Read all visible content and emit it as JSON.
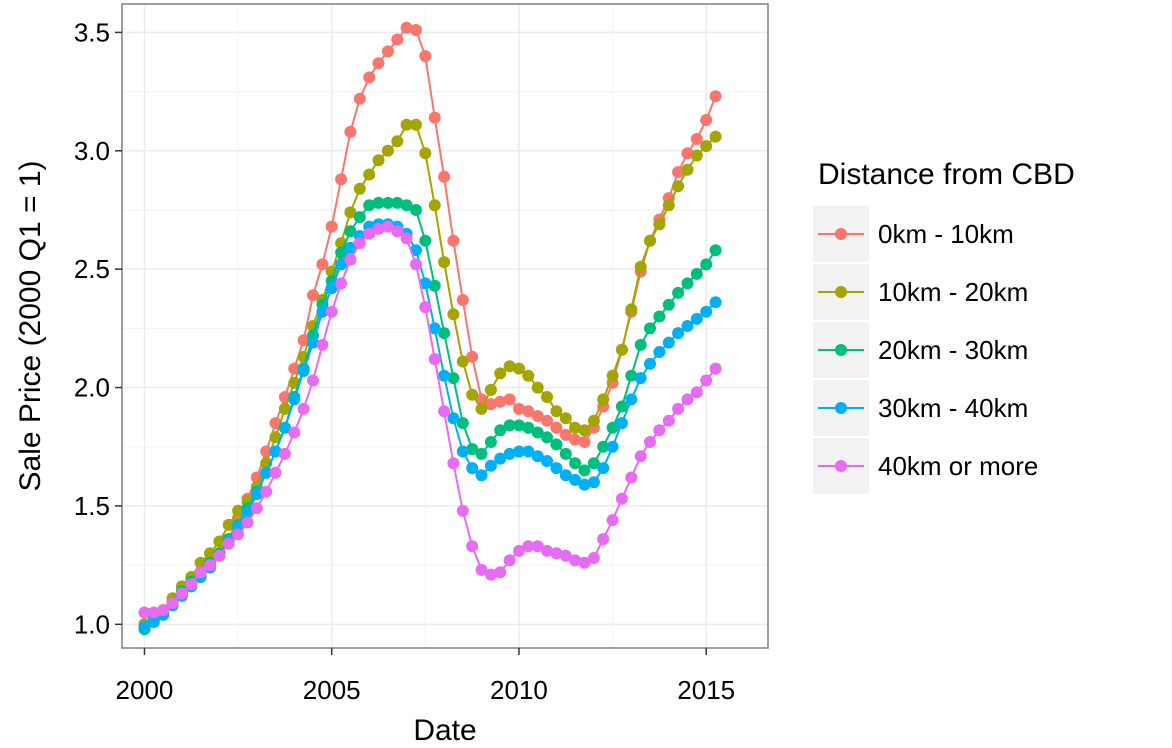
{
  "chart_data": {
    "type": "line",
    "title": "",
    "xlabel": "Date",
    "ylabel": "Sale Price (2000 Q1 = 1)",
    "xlim": [
      1999.4,
      2016.65
    ],
    "ylim": [
      0.9,
      3.62
    ],
    "x_ticks": [
      2000,
      2005,
      2010,
      2015
    ],
    "x_tick_labels": [
      "2000",
      "2005",
      "2010",
      "2015"
    ],
    "y_ticks": [
      1.0,
      1.5,
      2.0,
      2.5,
      3.0,
      3.5
    ],
    "y_tick_labels": [
      "1.0",
      "1.5",
      "2.0",
      "2.5",
      "3.0",
      "3.5"
    ],
    "grid": true,
    "theme": "ggplot-bw",
    "legend": {
      "title": "Distance from CBD",
      "position": "right"
    },
    "x": [
      2000.0,
      2000.25,
      2000.5,
      2000.75,
      2001.0,
      2001.25,
      2001.5,
      2001.75,
      2002.0,
      2002.25,
      2002.5,
      2002.75,
      2003.0,
      2003.25,
      2003.5,
      2003.75,
      2004.0,
      2004.25,
      2004.5,
      2004.75,
      2005.0,
      2005.25,
      2005.5,
      2005.75,
      2006.0,
      2006.25,
      2006.5,
      2006.75,
      2007.0,
      2007.25,
      2007.5,
      2007.75,
      2008.0,
      2008.25,
      2008.5,
      2008.75,
      2009.0,
      2009.25,
      2009.5,
      2009.75,
      2010.0,
      2010.25,
      2010.5,
      2010.75,
      2011.0,
      2011.25,
      2011.5,
      2011.75,
      2012.0,
      2012.25,
      2012.5,
      2012.75,
      2013.0,
      2013.25,
      2013.5,
      2013.75,
      2014.0,
      2014.25,
      2014.5,
      2014.75,
      2015.0,
      2015.25
    ],
    "series": [
      {
        "name": "0km - 10km",
        "color": "#F8766D",
        "values": [
          1.0,
          1.02,
          1.05,
          1.1,
          1.14,
          1.17,
          1.2,
          1.24,
          1.3,
          1.36,
          1.45,
          1.53,
          1.62,
          1.73,
          1.85,
          1.96,
          2.08,
          2.2,
          2.39,
          2.52,
          2.68,
          2.88,
          3.08,
          3.22,
          3.31,
          3.37,
          3.42,
          3.47,
          3.52,
          3.51,
          3.4,
          3.14,
          2.89,
          2.62,
          2.37,
          2.13,
          1.95,
          1.93,
          1.94,
          1.95,
          1.91,
          1.9,
          1.88,
          1.86,
          1.83,
          1.8,
          1.78,
          1.77,
          1.83,
          1.92,
          2.02,
          2.16,
          2.32,
          2.49,
          2.62,
          2.71,
          2.8,
          2.91,
          2.99,
          3.05,
          3.13,
          3.23
        ]
      },
      {
        "name": "10km - 20km",
        "color": "#A3A500",
        "values": [
          1.0,
          1.03,
          1.06,
          1.11,
          1.16,
          1.2,
          1.26,
          1.3,
          1.35,
          1.42,
          1.48,
          1.52,
          1.58,
          1.68,
          1.79,
          1.91,
          2.02,
          2.13,
          2.26,
          2.37,
          2.49,
          2.61,
          2.74,
          2.84,
          2.9,
          2.96,
          3.0,
          3.04,
          3.11,
          3.11,
          2.99,
          2.77,
          2.53,
          2.31,
          2.11,
          1.97,
          1.91,
          1.99,
          2.06,
          2.09,
          2.08,
          2.05,
          2.0,
          1.96,
          1.9,
          1.87,
          1.83,
          1.82,
          1.86,
          1.95,
          2.05,
          2.16,
          2.33,
          2.51,
          2.62,
          2.69,
          2.77,
          2.85,
          2.92,
          2.98,
          3.02,
          3.06
        ]
      },
      {
        "name": "20km - 30km",
        "color": "#00BF7D",
        "values": [
          0.98,
          1.02,
          1.05,
          1.09,
          1.14,
          1.18,
          1.22,
          1.26,
          1.3,
          1.36,
          1.42,
          1.49,
          1.56,
          1.64,
          1.73,
          1.83,
          1.96,
          2.08,
          2.22,
          2.35,
          2.45,
          2.57,
          2.66,
          2.72,
          2.77,
          2.78,
          2.78,
          2.78,
          2.77,
          2.75,
          2.62,
          2.43,
          2.23,
          2.04,
          1.85,
          1.74,
          1.72,
          1.77,
          1.82,
          1.84,
          1.84,
          1.83,
          1.81,
          1.79,
          1.76,
          1.72,
          1.68,
          1.65,
          1.68,
          1.75,
          1.83,
          1.92,
          2.05,
          2.18,
          2.25,
          2.3,
          2.35,
          2.4,
          2.44,
          2.48,
          2.52,
          2.58
        ]
      },
      {
        "name": "30km - 40km",
        "color": "#00B0F6",
        "values": [
          0.99,
          1.01,
          1.04,
          1.08,
          1.12,
          1.16,
          1.2,
          1.24,
          1.29,
          1.35,
          1.41,
          1.47,
          1.55,
          1.64,
          1.73,
          1.83,
          1.95,
          2.07,
          2.19,
          2.32,
          2.42,
          2.52,
          2.59,
          2.64,
          2.68,
          2.69,
          2.69,
          2.68,
          2.65,
          2.58,
          2.44,
          2.25,
          2.05,
          1.87,
          1.73,
          1.66,
          1.63,
          1.67,
          1.7,
          1.72,
          1.73,
          1.73,
          1.71,
          1.69,
          1.66,
          1.63,
          1.61,
          1.59,
          1.6,
          1.66,
          1.75,
          1.85,
          1.95,
          2.04,
          2.1,
          2.15,
          2.19,
          2.23,
          2.26,
          2.29,
          2.32,
          2.36
        ]
      },
      {
        "name": "40km or more",
        "color": "#E76BF3",
        "values": [
          1.05,
          1.05,
          1.06,
          1.09,
          1.13,
          1.17,
          1.22,
          1.25,
          1.29,
          1.34,
          1.38,
          1.43,
          1.49,
          1.56,
          1.64,
          1.72,
          1.81,
          1.91,
          2.03,
          2.18,
          2.32,
          2.44,
          2.54,
          2.61,
          2.65,
          2.67,
          2.68,
          2.66,
          2.63,
          2.52,
          2.34,
          2.12,
          1.9,
          1.68,
          1.48,
          1.33,
          1.23,
          1.21,
          1.22,
          1.27,
          1.31,
          1.33,
          1.33,
          1.31,
          1.3,
          1.29,
          1.27,
          1.26,
          1.28,
          1.36,
          1.44,
          1.53,
          1.62,
          1.71,
          1.77,
          1.82,
          1.86,
          1.91,
          1.95,
          1.98,
          2.03,
          2.08
        ]
      }
    ]
  }
}
